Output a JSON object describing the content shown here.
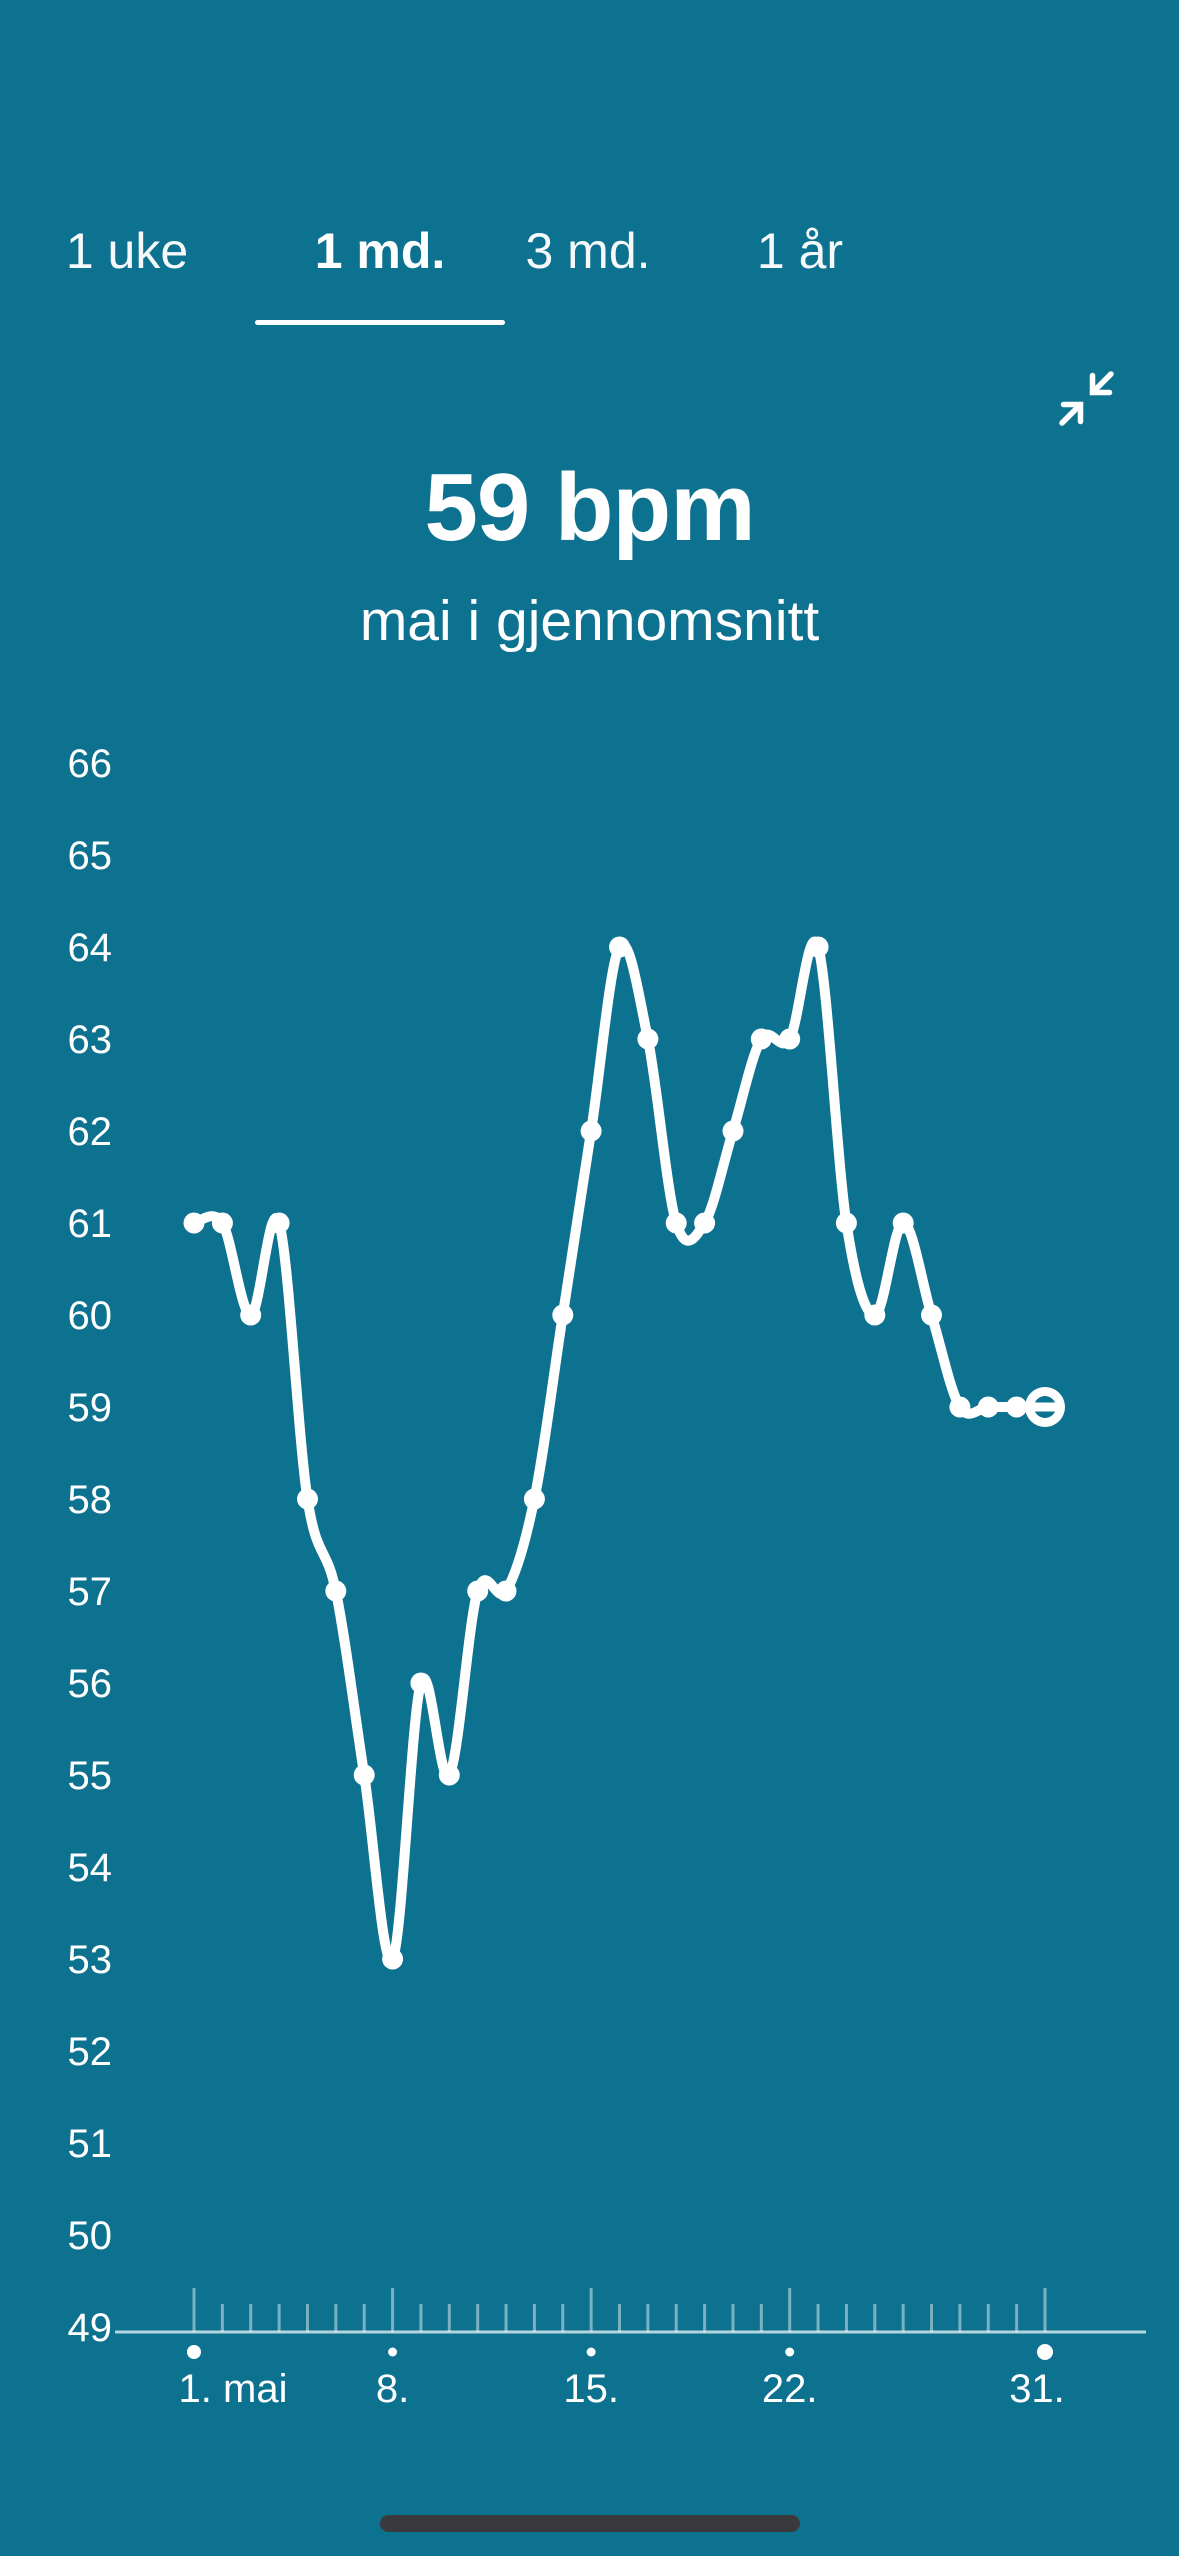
{
  "tabs": {
    "items": [
      {
        "label": "1 uke",
        "active": false
      },
      {
        "label": "1 md.",
        "active": true
      },
      {
        "label": "3 md.",
        "active": false
      },
      {
        "label": "1 år",
        "active": false
      }
    ]
  },
  "header": {
    "collapse_icon": "arrows-pointing-inward"
  },
  "summary": {
    "value": "59 bpm",
    "subtitle": "mai i gjennomsnitt"
  },
  "chart_data": {
    "type": "line",
    "title": "59 bpm",
    "subtitle": "mai i gjennomsnitt",
    "unit": "bpm",
    "xlabel": "",
    "ylabel": "",
    "ylim": [
      49,
      66
    ],
    "y_ticks": [
      66,
      65,
      64,
      63,
      62,
      61,
      60,
      59,
      58,
      57,
      56,
      55,
      54,
      53,
      52,
      51,
      50,
      49
    ],
    "x_range_days": [
      1,
      31
    ],
    "x_tick_labels": [
      {
        "day": 1,
        "label": "1. mai"
      },
      {
        "day": 8,
        "label": "8."
      },
      {
        "day": 15,
        "label": "15."
      },
      {
        "day": 22,
        "label": "22."
      },
      {
        "day": 31,
        "label": "31."
      }
    ],
    "grid": "none",
    "legend": "none",
    "series": [
      {
        "name": "daily-average-heart-rate",
        "x": [
          1,
          2,
          3,
          4,
          5,
          6,
          7,
          8,
          9,
          10,
          11,
          12,
          13,
          14,
          15,
          16,
          17,
          18,
          19,
          20,
          21,
          22,
          23,
          24,
          25,
          26,
          27,
          28,
          29,
          30,
          31
        ],
        "values": [
          61,
          61,
          60,
          61,
          58,
          57,
          55,
          53,
          56,
          55,
          57,
          57,
          58,
          60,
          62,
          64,
          63,
          61,
          61,
          62,
          63,
          63,
          64,
          61,
          60,
          61,
          60,
          59,
          59,
          59,
          59
        ]
      }
    ],
    "last_point_highlighted": true,
    "colors": {
      "background": "#0D7190",
      "line": "#FFFFFF",
      "axis": "rgba(255,255,255,0.7)",
      "ticks": "rgba(255,255,255,0.45)",
      "home_indicator": "#3A3A3C"
    }
  }
}
